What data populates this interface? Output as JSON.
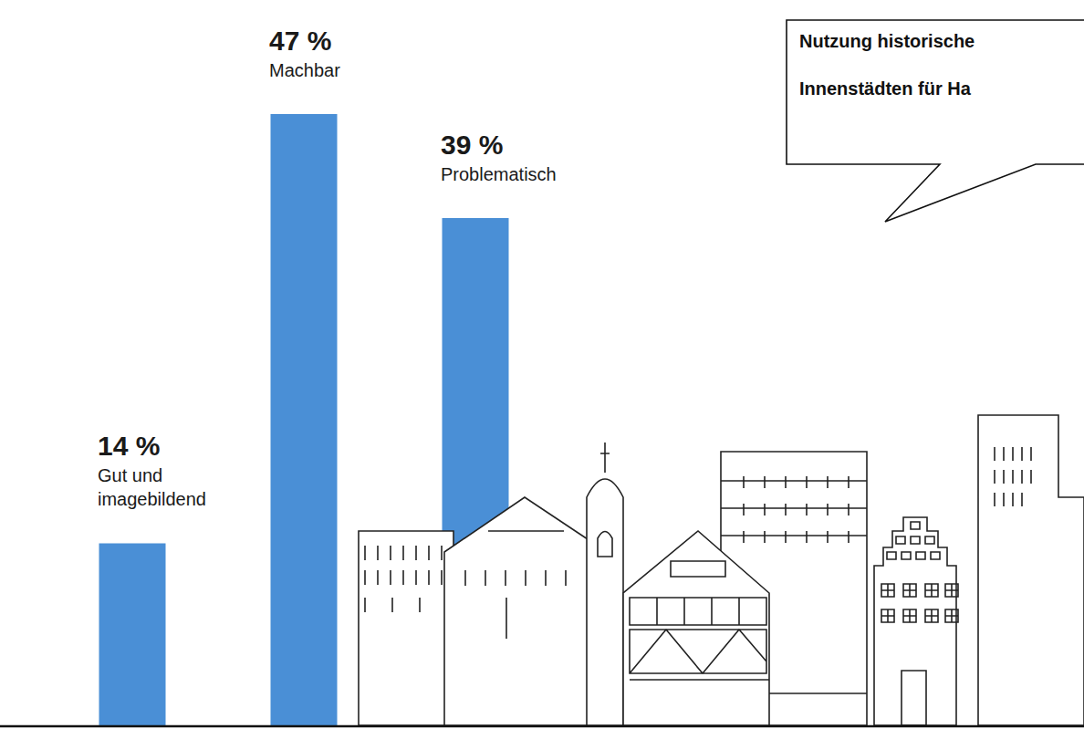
{
  "chart_data": {
    "type": "bar",
    "categories": [
      "Gut und imagebildend",
      "Machbar",
      "Problematisch"
    ],
    "values": [
      14,
      47,
      39
    ],
    "value_labels": [
      "14 %",
      "47 %",
      "39 %"
    ],
    "color": "#4a8fd6",
    "ylim": [
      0,
      47
    ],
    "grid": false,
    "data_labels": true,
    "tick_labels": false,
    "annotations": [
      "Nutzung historische",
      "Innenstädten für Ha"
    ]
  }
}
